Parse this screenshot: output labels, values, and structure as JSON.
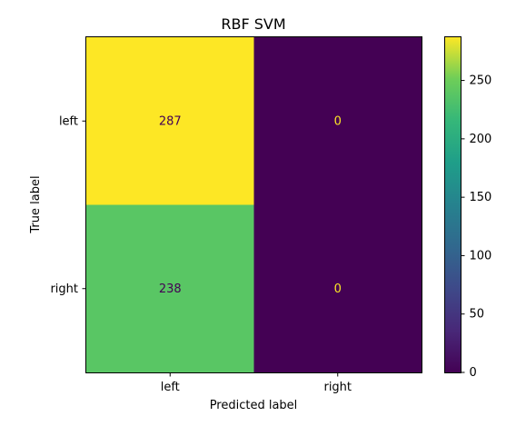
{
  "chart_data": {
    "type": "heatmap",
    "title": "RBF SVM",
    "xlabel": "Predicted label",
    "ylabel": "True label",
    "x_categories": [
      "left",
      "right"
    ],
    "y_categories": [
      "left",
      "right"
    ],
    "matrix": [
      [
        287,
        0
      ],
      [
        238,
        0
      ]
    ],
    "cell_labels": [
      [
        "287",
        "0"
      ],
      [
        "238",
        "0"
      ]
    ],
    "colormap": "viridis",
    "color_range": [
      0,
      287
    ],
    "colorbar_ticks": [
      "0",
      "50",
      "100",
      "150",
      "200",
      "250"
    ],
    "colorbar_tick_values": [
      0,
      50,
      100,
      150,
      200,
      250
    ]
  }
}
